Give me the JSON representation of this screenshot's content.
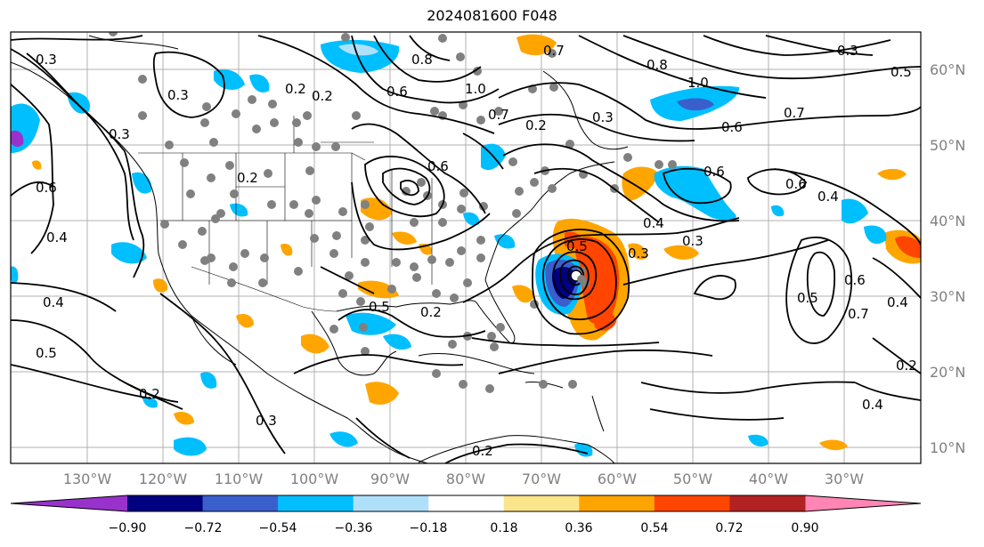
{
  "title": "2024081600 F048",
  "map": {
    "longitude_labels": [
      "130°W",
      "120°W",
      "110°W",
      "100°W",
      "90°W",
      "80°W",
      "70°W",
      "60°W",
      "50°W",
      "40°W",
      "30°W"
    ],
    "latitude_labels": [
      "60°N",
      "50°N",
      "40°N",
      "30°N",
      "20°N",
      "10°N"
    ],
    "contour_labels": [
      "0.3",
      "0.2",
      "0.3",
      "0.2",
      "0.8",
      "0.6",
      "1.0",
      "0.7",
      "0.2",
      "0.3",
      "0.8",
      "0.7",
      "1.0",
      "0.7",
      "0.6",
      "0.5",
      "0.3",
      "0.6",
      "0.4",
      "0.6",
      "0.3",
      "0.4",
      "0.5",
      "0.3",
      "0.2",
      "0.4",
      "0.3",
      "0.6",
      "0.4",
      "0.5",
      "0.2",
      "0.3",
      "0.2",
      "0.5",
      "0.6",
      "0.7",
      "0.4",
      "0.4",
      "0.2",
      "0.6",
      "0.2",
      "0.5"
    ],
    "colors": {
      "land_outline": "#000000",
      "grid": "#b0b0b0",
      "station_dots": "#808080",
      "contours": "#000000"
    }
  },
  "colorbar": {
    "tick_labels": [
      "−0.90",
      "−0.72",
      "−0.54",
      "−0.36",
      "−0.18",
      "0.18",
      "0.36",
      "0.54",
      "0.72",
      "0.90"
    ],
    "colors": [
      "#9932cc",
      "#000080",
      "#3a5fcd",
      "#00bfff",
      "#afe0fa",
      "#ffffff",
      "#fbe58b",
      "#ffa500",
      "#ff4500",
      "#b22222",
      "#ff85b5"
    ]
  }
}
